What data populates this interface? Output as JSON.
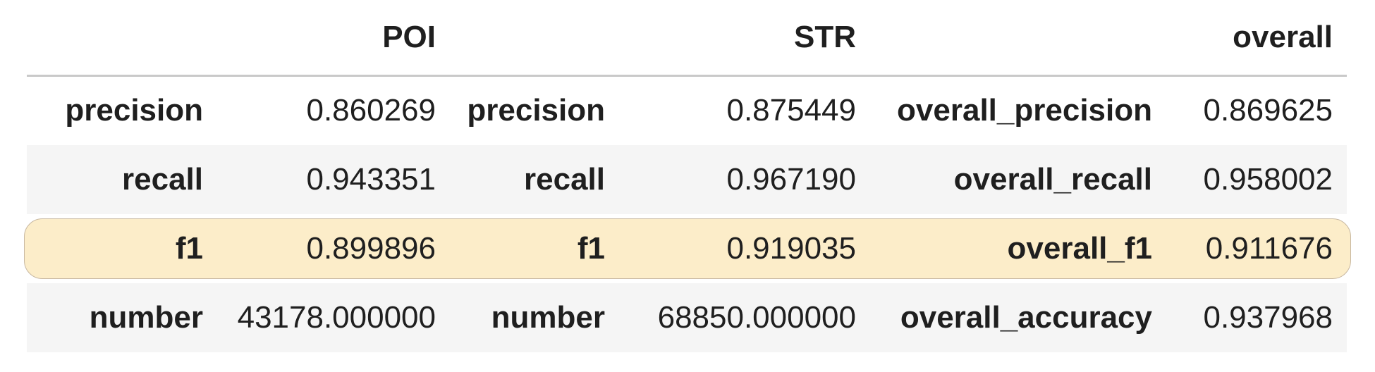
{
  "panels": [
    {
      "header": "POI",
      "rows": [
        {
          "label": "precision",
          "value": "0.860269"
        },
        {
          "label": "recall",
          "value": "0.943351"
        },
        {
          "label": "f1",
          "value": "0.899896"
        },
        {
          "label": "number",
          "value": "43178.000000"
        }
      ]
    },
    {
      "header": "STR",
      "rows": [
        {
          "label": "precision",
          "value": "0.875449"
        },
        {
          "label": "recall",
          "value": "0.967190"
        },
        {
          "label": "f1",
          "value": "0.919035"
        },
        {
          "label": "number",
          "value": "68850.000000"
        }
      ]
    },
    {
      "header": "overall",
      "rows": [
        {
          "label": "overall_precision",
          "value": "0.869625"
        },
        {
          "label": "overall_recall",
          "value": "0.958002"
        },
        {
          "label": "overall_f1",
          "value": "0.911676"
        },
        {
          "label": "overall_accuracy",
          "value": "0.937968"
        }
      ]
    }
  ],
  "highlight_color": "#fcedc9",
  "stripe_color": "#f5f5f5"
}
